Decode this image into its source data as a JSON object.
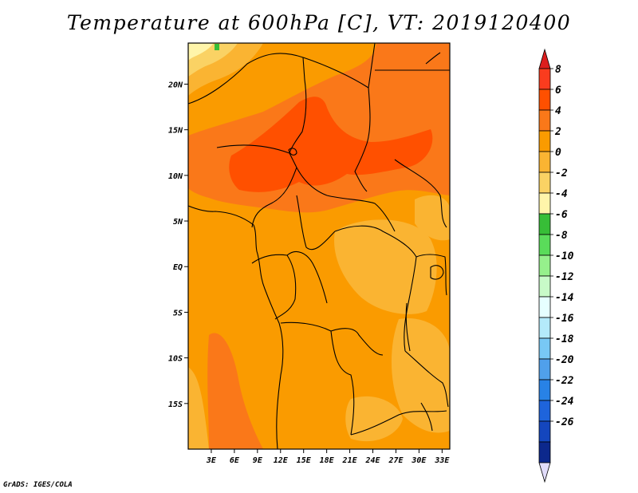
{
  "title": "Temperature at 600hPa [C], VT: 2019120400",
  "credit": "GrADS: IGES/COLA",
  "map": {
    "lon_range": [
      0,
      34
    ],
    "lat_range": [
      -20,
      24.5
    ],
    "lon_ticks": [
      {
        "value": 3,
        "label": "3E"
      },
      {
        "value": 6,
        "label": "6E"
      },
      {
        "value": 9,
        "label": "9E"
      },
      {
        "value": 12,
        "label": "12E"
      },
      {
        "value": 15,
        "label": "15E"
      },
      {
        "value": 18,
        "label": "18E"
      },
      {
        "value": 21,
        "label": "21E"
      },
      {
        "value": 24,
        "label": "24E"
      },
      {
        "value": 27,
        "label": "27E"
      },
      {
        "value": 30,
        "label": "30E"
      },
      {
        "value": 33,
        "label": "33E"
      }
    ],
    "lat_ticks": [
      {
        "value": 20,
        "label": "20N"
      },
      {
        "value": 15,
        "label": "15N"
      },
      {
        "value": 10,
        "label": "10N"
      },
      {
        "value": 5,
        "label": "5N"
      },
      {
        "value": 0,
        "label": "EQ"
      },
      {
        "value": -5,
        "label": "5S"
      },
      {
        "value": -10,
        "label": "10S"
      },
      {
        "value": -15,
        "label": "15S"
      }
    ]
  },
  "colorbar": {
    "levels": [
      {
        "label": "8",
        "color": "#fa3c1e"
      },
      {
        "label": "6",
        "color": "#ff5000"
      },
      {
        "label": "4",
        "color": "#fa7819"
      },
      {
        "label": "2",
        "color": "#fa9b00"
      },
      {
        "label": "0",
        "color": "#fab432"
      },
      {
        "label": "-2",
        "color": "#fad264"
      },
      {
        "label": "-4",
        "color": "#fff5aa"
      },
      {
        "label": "-6",
        "color": "#37be37"
      },
      {
        "label": "-8",
        "color": "#5adc5a"
      },
      {
        "label": "-10",
        "color": "#96f08c"
      },
      {
        "label": "-12",
        "color": "#c8fac8"
      },
      {
        "label": "-14",
        "color": "#e6ffff"
      },
      {
        "label": "-16",
        "color": "#b4eafa"
      },
      {
        "label": "-18",
        "color": "#78c8f5"
      },
      {
        "label": "-20",
        "color": "#50a0eb"
      },
      {
        "label": "-22",
        "color": "#2882e6"
      },
      {
        "label": "-24",
        "color": "#1e64dc"
      },
      {
        "label": "-26",
        "color": "#1446be"
      },
      {
        "label": "",
        "color": "#0c288c"
      }
    ],
    "top_triangle_color": "#dc1e1e",
    "bottom_triangle_color": "#e1dcfa"
  },
  "fill_colors": {
    "base": "#fa9b00",
    "warm": "#fa7819",
    "hot": "#ff5000",
    "cool": "#fab432",
    "cooler": "#fad264",
    "coldest": "#fff5aa",
    "green": "#37be37"
  }
}
